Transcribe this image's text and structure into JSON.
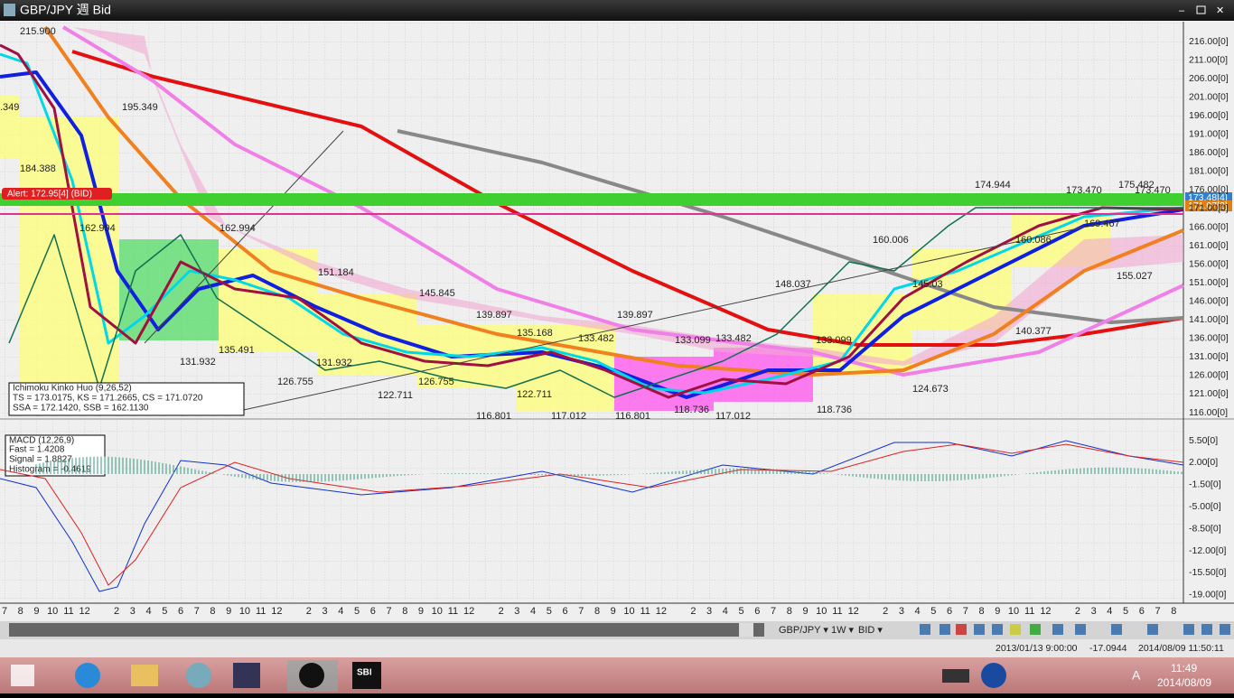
{
  "window": {
    "title": "GBP/JPY 週 Bid"
  },
  "price_axis": [
    "216.00[0]",
    "211.00[0]",
    "206.00[0]",
    "201.00[0]",
    "196.00[0]",
    "191.00[0]",
    "186.00[0]",
    "181.00[0]",
    "176.00[0]",
    "171.00[0]",
    "166.00[0]",
    "161.00[0]",
    "156.00[0]",
    "151.00[0]",
    "146.00[0]",
    "141.00[0]",
    "136.00[0]",
    "131.00[0]",
    "126.00[0]",
    "121.00[0]",
    "116.00[0]"
  ],
  "price_markers": {
    "upper": "173.48[4]",
    "lower": "171.07[2]"
  },
  "alert": "Alert: 172.95[4] (BID)",
  "annotations": [
    "215.900",
    ".349",
    "195.349",
    "184.388",
    "162.994",
    "162.994",
    "151.184",
    "145.845",
    "139.897",
    "139.897",
    "135.491",
    "131.932",
    "131.932",
    "126.755",
    "126.755",
    "122.711",
    "122.711",
    "116.801",
    "116.801",
    "117.012",
    "117.012",
    "135.168",
    "133.482",
    "133.482",
    "133.099",
    "133.099",
    "118.736",
    "118.736",
    "148.037",
    "160.006",
    "174.944",
    "173.470",
    "175.482",
    "173.470",
    "124.673",
    "140.377",
    "155.027",
    "169.467",
    "160.086",
    "145.03"
  ],
  "ichimoku": {
    "title": "Ichimoku Kinko Huo (9,26,52)",
    "line1": "TS = 173.0175, KS = 171.2665, CS = 171.0720",
    "line2": "SSA = 172.1420, SSB = 162.1130"
  },
  "macd": {
    "title": "MACD (12,26,9)",
    "fast": "Fast = 1.4208",
    "signal": "Signal = 1.8827",
    "histogram": "Histogram = -0.4619"
  },
  "macd_axis": [
    "5.50[0]",
    "2.00[0]",
    "-1.50[0]",
    "-5.00[0]",
    "-8.50[0]",
    "-12.00[0]",
    "-15.50[0]",
    "-19.00[0]"
  ],
  "months": [
    "7",
    "8",
    "9",
    "10",
    "11",
    "12",
    null,
    "2",
    "3",
    "4",
    "5",
    "6",
    "7",
    "8",
    "9",
    "10",
    "11",
    "12",
    null,
    "2",
    "3",
    "4",
    "5",
    "6",
    "7",
    "8",
    "9",
    "10",
    "11",
    "12",
    null,
    "2",
    "3",
    "4",
    "5",
    "6",
    "7",
    "8",
    "9",
    "10",
    "11",
    "12",
    null,
    "2",
    "3",
    "4",
    "5",
    "6",
    "7",
    "8",
    "9",
    "10",
    "11",
    "12",
    null,
    "2",
    "3",
    "4",
    "5",
    "6",
    "7",
    "8",
    "9",
    "10",
    "11",
    "12",
    null,
    "2",
    "3",
    "4",
    "5",
    "6",
    "7",
    "8"
  ],
  "toolbar": {
    "symbol": "GBP/JPY ▾",
    "period": "1W ▾",
    "side": "BID ▾"
  },
  "status": {
    "time": "2013/01/13 9:00:00",
    "value": "-17.0944",
    "now": "2014/08/09 11:50:11"
  },
  "taskbar": {
    "time": "11:49",
    "date": "2014/08/09",
    "ime": "A",
    "app": "SBI"
  }
}
